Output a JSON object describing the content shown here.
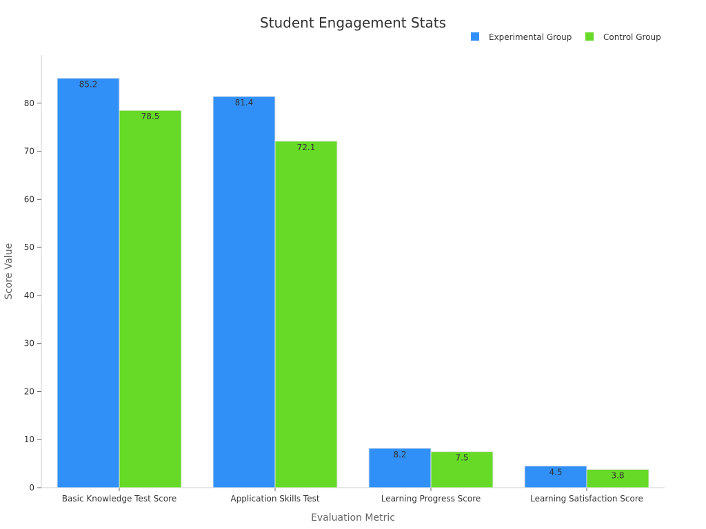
{
  "chart_data": {
    "type": "bar",
    "title": "Student Engagement Stats",
    "xlabel": "Evaluation Metric",
    "ylabel": "Score Value",
    "ylim": [
      0,
      90
    ],
    "yticks": [
      0,
      10,
      20,
      30,
      40,
      50,
      60,
      70,
      80
    ],
    "grid": false,
    "legend_position": "top-right",
    "categories": [
      "Basic Knowledge Test Score",
      "Application Skills Test",
      "Learning Progress Score",
      "Learning Satisfaction Score"
    ],
    "series": [
      {
        "name": "Experimental Group",
        "color": "#3090f8",
        "values": [
          85.2,
          81.4,
          8.2,
          4.5
        ]
      },
      {
        "name": "Control Group",
        "color": "#66da26",
        "values": [
          78.5,
          72.1,
          7.5,
          3.8
        ]
      }
    ]
  }
}
